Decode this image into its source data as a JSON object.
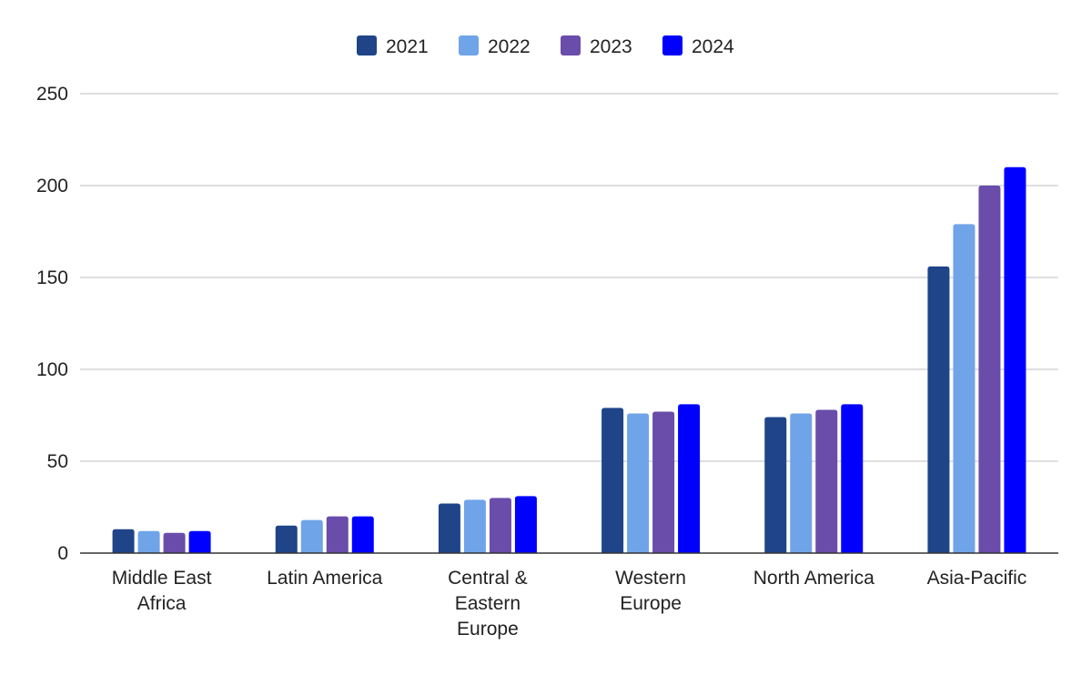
{
  "chart_data": {
    "type": "bar",
    "title": "",
    "xlabel": "",
    "ylabel": "",
    "categories": [
      [
        "Middle East",
        "Africa"
      ],
      [
        "Latin America"
      ],
      [
        "Central &",
        "Eastern",
        "Europe"
      ],
      [
        "Western",
        "Europe"
      ],
      [
        "North America"
      ],
      [
        "Asia-Pacific"
      ]
    ],
    "series": [
      {
        "name": "2021",
        "color": "#1f4488",
        "values": [
          13,
          15,
          27,
          79,
          74,
          156
        ]
      },
      {
        "name": "2022",
        "color": "#6fa4e8",
        "values": [
          12,
          18,
          29,
          76,
          76,
          179
        ]
      },
      {
        "name": "2023",
        "color": "#6a4caa",
        "values": [
          11,
          20,
          30,
          77,
          78,
          200
        ]
      },
      {
        "name": "2024",
        "color": "#0000ff",
        "values": [
          12,
          20,
          31,
          81,
          81,
          210
        ]
      }
    ],
    "ylim": [
      0,
      250
    ],
    "yticks": [
      0,
      50,
      100,
      150,
      200,
      250
    ],
    "grid": true,
    "legend_position": "top-center"
  }
}
